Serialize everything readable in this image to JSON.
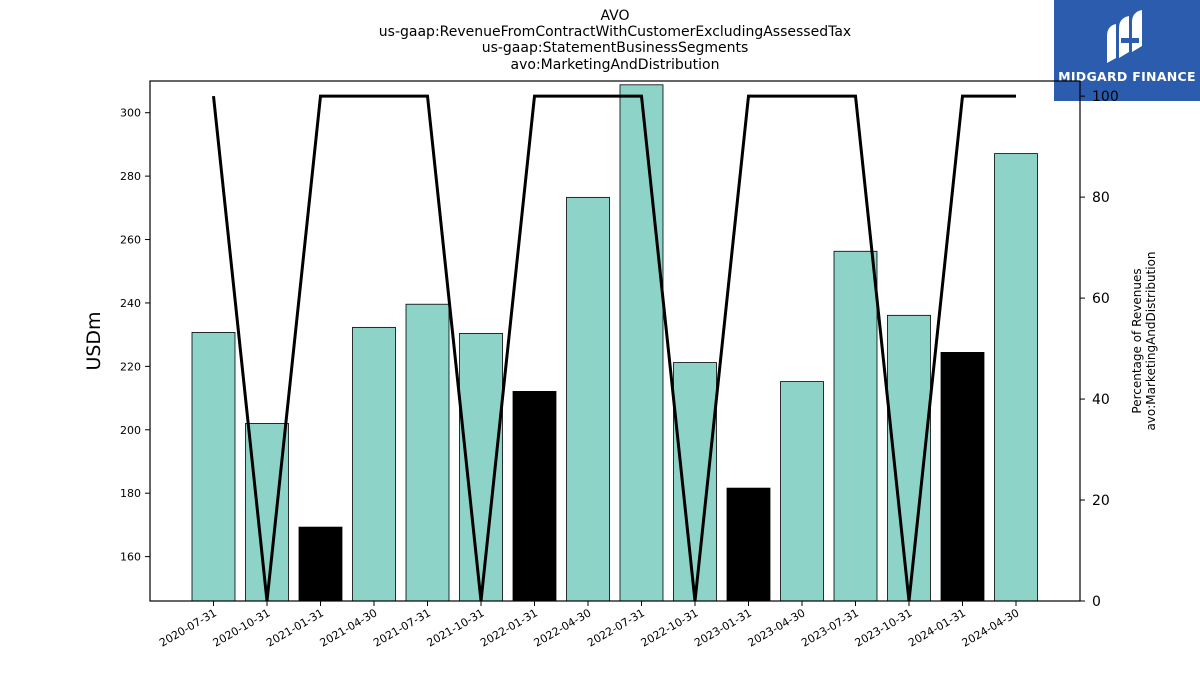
{
  "title": {
    "lines": [
      "AVO",
      "us-gaap:RevenueFromContractWithCustomerExcludingAssessedTax",
      "us-gaap:StatementBusinessSegments",
      "avo:MarketingAndDistribution"
    ]
  },
  "logo": {
    "text": "MIDGARD FINANCE",
    "color": "#2b5cad"
  },
  "chart_data": {
    "type": "bar",
    "categories": [
      "2020-07-31",
      "2020-10-31",
      "2021-01-31",
      "2021-04-30",
      "2021-07-31",
      "2021-10-31",
      "2022-01-31",
      "2022-04-30",
      "2022-07-31",
      "2022-10-31",
      "2023-01-31",
      "2023-04-30",
      "2023-07-31",
      "2023-10-31",
      "2024-01-31",
      "2024-04-30"
    ],
    "series": [
      {
        "type": "bar",
        "axis": "left",
        "values": [
          230.7,
          202.0,
          169.3,
          232.3,
          239.6,
          230.4,
          212.1,
          273.3,
          308.8,
          221.2,
          181.6,
          215.2,
          256.3,
          236.1,
          224.4,
          287.1
        ],
        "colors": [
          "#8dd3c7",
          "#8dd3c7",
          "#000000",
          "#8dd3c7",
          "#8dd3c7",
          "#8dd3c7",
          "#000000",
          "#8dd3c7",
          "#8dd3c7",
          "#8dd3c7",
          "#000000",
          "#8dd3c7",
          "#8dd3c7",
          "#8dd3c7",
          "#000000",
          "#8dd3c7"
        ]
      },
      {
        "type": "line",
        "axis": "right",
        "color": "#000000",
        "values": [
          100,
          0,
          100,
          100,
          100,
          0,
          100,
          100,
          100,
          0,
          100,
          100,
          100,
          0,
          100,
          100
        ]
      }
    ],
    "ylabel": "USDm",
    "y2label": [
      "Percentage of Revenues",
      "avo:MarketingAndDistribution"
    ],
    "ylim": [
      146,
      310
    ],
    "y2lim": [
      0,
      103
    ],
    "yticks": [
      160,
      180,
      200,
      220,
      240,
      260,
      280,
      300
    ],
    "y2ticks": [
      0,
      20,
      40,
      60,
      80,
      100
    ],
    "grid": false,
    "bar_color": "#8dd3c7",
    "highlight_color": "#000000"
  }
}
